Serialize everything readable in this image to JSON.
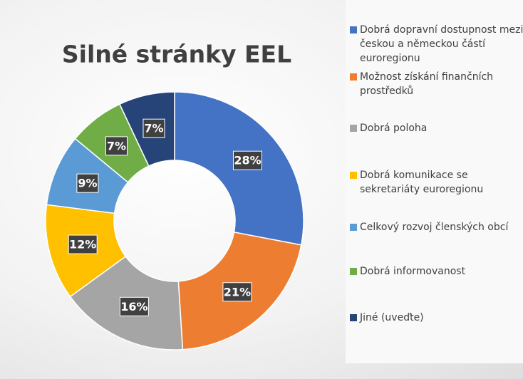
{
  "chart_data": {
    "type": "donut",
    "title": "Silné stránky EEL",
    "categories": [
      "Dobrá dopravní dostupnost mezi českou a německou částí euroregionu",
      "Možnost získání finančních prostředků",
      "Dobrá poloha",
      "Dobrá komunikace se sekretariáty euroregionu",
      "Celkový rozvoj členských obcí",
      "Dobrá informovanost",
      "Jiné (uveďte)"
    ],
    "values": [
      28,
      21,
      16,
      12,
      9,
      7,
      7
    ],
    "value_labels": [
      "28%",
      "21%",
      "16%",
      "12%",
      "9%",
      "7%",
      "7%"
    ],
    "colors": [
      "#4472c4",
      "#ed7d31",
      "#a5a5a5",
      "#ffc000",
      "#5b9bd5",
      "#70ad47",
      "#264478"
    ],
    "legend": "right"
  }
}
